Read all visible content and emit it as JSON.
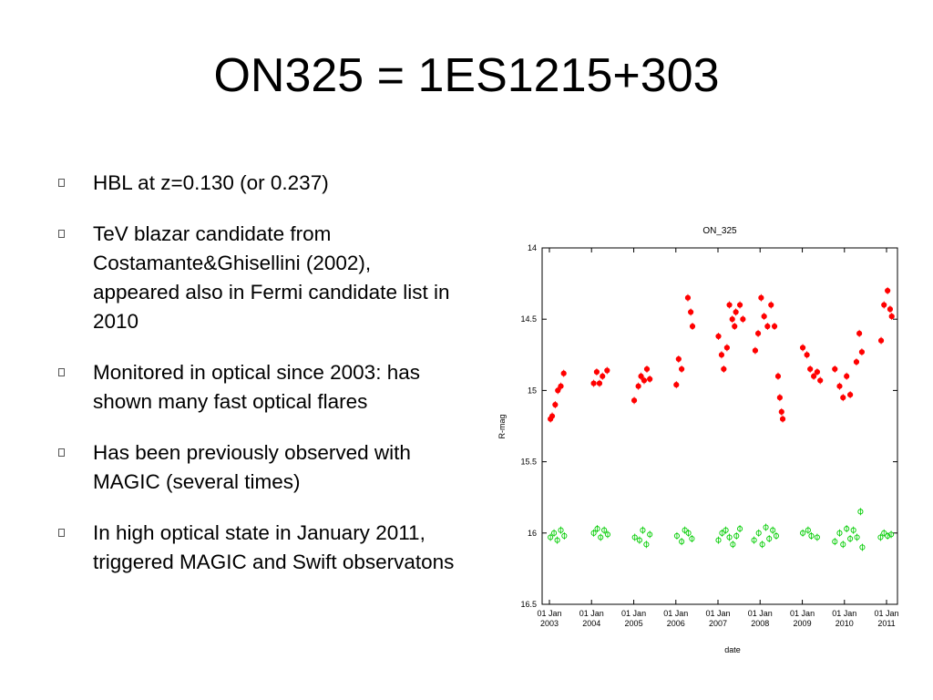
{
  "slide": {
    "title": "ON325 = 1ES1215+303",
    "bullets": [
      "HBL at z=0.130 (or 0.237)",
      "TeV blazar candidate from Costamante&Ghisellini (2002), appeared also in Fermi candidate list in 2010",
      "Monitored in optical since 2003: has shown many fast optical flares",
      "Has been previously observed with MAGIC (several times)",
      "In high optical state in January 2011, triggered MAGIC and Swift observatons"
    ]
  },
  "chart_data": {
    "type": "scatter",
    "title": "ON_325",
    "xlabel": "date",
    "ylabel": "R-mag",
    "ylim": [
      16.5,
      14.0
    ],
    "y_inverted": true,
    "xlim": [
      "2003-01-01",
      "2011-01-01"
    ],
    "y_ticks": [
      "14",
      "14.5",
      "15",
      "15.5",
      "16",
      "16.5"
    ],
    "x_ticks": [
      "01 Jan 2003",
      "01 Jan 2004",
      "01 Jan 2005",
      "01 Jan 2006",
      "01 Jan 2007",
      "01 Jan 2008",
      "01 Jan 2009",
      "01 Jan 2010",
      "01 Jan 2011"
    ],
    "series": [
      {
        "color": "#ff0000",
        "marker": "filled-circle",
        "points": [
          [
            "2003-01-10",
            15.2
          ],
          [
            "2003-01-25",
            15.18
          ],
          [
            "2003-02-20",
            15.1
          ],
          [
            "2003-03-15",
            15.0
          ],
          [
            "2003-04-10",
            14.97
          ],
          [
            "2003-05-05",
            14.88
          ],
          [
            "2004-01-20",
            14.95
          ],
          [
            "2004-02-15",
            14.87
          ],
          [
            "2004-03-10",
            14.95
          ],
          [
            "2004-04-05",
            14.9
          ],
          [
            "2004-05-15",
            14.86
          ],
          [
            "2005-01-05",
            15.07
          ],
          [
            "2005-02-10",
            14.97
          ],
          [
            "2005-03-05",
            14.9
          ],
          [
            "2005-04-01",
            14.93
          ],
          [
            "2005-04-25",
            14.85
          ],
          [
            "2005-05-20",
            14.92
          ],
          [
            "2006-01-05",
            14.96
          ],
          [
            "2006-01-25",
            14.78
          ],
          [
            "2006-02-20",
            14.85
          ],
          [
            "2006-04-15",
            14.35
          ],
          [
            "2006-05-10",
            14.45
          ],
          [
            "2006-05-25",
            14.55
          ],
          [
            "2007-01-05",
            14.62
          ],
          [
            "2007-02-01",
            14.75
          ],
          [
            "2007-02-20",
            14.85
          ],
          [
            "2007-03-20",
            14.7
          ],
          [
            "2007-04-10",
            14.4
          ],
          [
            "2007-05-05",
            14.5
          ],
          [
            "2007-05-25",
            14.55
          ],
          [
            "2007-06-05",
            14.45
          ],
          [
            "2007-07-10",
            14.4
          ],
          [
            "2007-08-05",
            14.5
          ],
          [
            "2007-11-20",
            14.72
          ],
          [
            "2007-12-15",
            14.6
          ],
          [
            "2008-01-10",
            14.35
          ],
          [
            "2008-02-05",
            14.48
          ],
          [
            "2008-03-05",
            14.55
          ],
          [
            "2008-04-05",
            14.4
          ],
          [
            "2008-05-05",
            14.55
          ],
          [
            "2008-06-05",
            14.9
          ],
          [
            "2008-06-20",
            15.05
          ],
          [
            "2008-07-05",
            15.15
          ],
          [
            "2008-07-15",
            15.2
          ],
          [
            "2009-01-05",
            14.7
          ],
          [
            "2009-02-10",
            14.75
          ],
          [
            "2009-03-10",
            14.85
          ],
          [
            "2009-04-10",
            14.9
          ],
          [
            "2009-05-10",
            14.87
          ],
          [
            "2009-06-05",
            14.93
          ],
          [
            "2009-10-10",
            14.85
          ],
          [
            "2009-11-20",
            14.97
          ],
          [
            "2009-12-20",
            15.05
          ],
          [
            "2010-01-20",
            14.9
          ],
          [
            "2010-02-20",
            15.03
          ],
          [
            "2010-04-15",
            14.8
          ],
          [
            "2010-05-10",
            14.6
          ],
          [
            "2010-06-01",
            14.73
          ],
          [
            "2010-11-15",
            14.65
          ],
          [
            "2010-12-10",
            14.4
          ],
          [
            "2011-01-10",
            14.3
          ],
          [
            "2011-02-01",
            14.43
          ],
          [
            "2011-02-15",
            14.48
          ]
        ]
      },
      {
        "color": "#00cc00",
        "marker": "open-circle",
        "points": [
          [
            "2003-01-10",
            16.03
          ],
          [
            "2003-02-10",
            16.0
          ],
          [
            "2003-03-10",
            16.05
          ],
          [
            "2003-04-10",
            15.98
          ],
          [
            "2003-05-10",
            16.02
          ],
          [
            "2004-01-20",
            16.0
          ],
          [
            "2004-02-20",
            15.97
          ],
          [
            "2004-03-20",
            16.03
          ],
          [
            "2004-04-20",
            15.98
          ],
          [
            "2004-05-20",
            16.01
          ],
          [
            "2005-01-10",
            16.03
          ],
          [
            "2005-02-20",
            16.05
          ],
          [
            "2005-03-20",
            15.98
          ],
          [
            "2005-04-20",
            16.08
          ],
          [
            "2005-05-20",
            16.01
          ],
          [
            "2006-01-10",
            16.02
          ],
          [
            "2006-02-20",
            16.06
          ],
          [
            "2006-03-20",
            15.98
          ],
          [
            "2006-04-20",
            16.0
          ],
          [
            "2006-05-20",
            16.04
          ],
          [
            "2007-01-05",
            16.05
          ],
          [
            "2007-02-05",
            16.0
          ],
          [
            "2007-03-10",
            15.98
          ],
          [
            "2007-04-10",
            16.03
          ],
          [
            "2007-05-10",
            16.08
          ],
          [
            "2007-06-10",
            16.02
          ],
          [
            "2007-07-10",
            15.97
          ],
          [
            "2007-11-10",
            16.05
          ],
          [
            "2007-12-20",
            16.0
          ],
          [
            "2008-01-20",
            16.08
          ],
          [
            "2008-02-20",
            15.96
          ],
          [
            "2008-03-20",
            16.04
          ],
          [
            "2008-04-20",
            15.98
          ],
          [
            "2008-05-20",
            16.02
          ],
          [
            "2009-01-05",
            16.0
          ],
          [
            "2009-02-20",
            15.98
          ],
          [
            "2009-03-20",
            16.02
          ],
          [
            "2009-05-10",
            16.03
          ],
          [
            "2009-10-10",
            16.06
          ],
          [
            "2009-11-20",
            16.0
          ],
          [
            "2009-12-20",
            16.08
          ],
          [
            "2010-01-20",
            15.97
          ],
          [
            "2010-02-20",
            16.04
          ],
          [
            "2010-03-20",
            15.98
          ],
          [
            "2010-04-20",
            16.03
          ],
          [
            "2010-05-20",
            15.85
          ],
          [
            "2010-06-05",
            16.1
          ],
          [
            "2010-11-10",
            16.03
          ],
          [
            "2010-12-10",
            16.0
          ],
          [
            "2011-01-10",
            16.02
          ],
          [
            "2011-02-10",
            16.01
          ]
        ]
      }
    ]
  }
}
